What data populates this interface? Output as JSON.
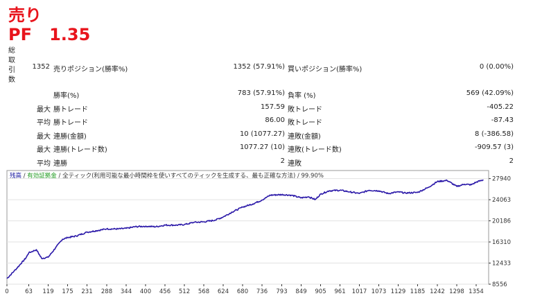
{
  "header": {
    "title": "売り",
    "pf_label": "PF",
    "pf_value": "1.35"
  },
  "vertical_label": [
    "総",
    "取",
    "引",
    "数"
  ],
  "stats": {
    "total_trades": "1352",
    "sell_positions_label": "売りポジション(勝率%)",
    "sell_positions_value": "1352 (57.91%)",
    "buy_positions_label": "買いポジション(勝率%)",
    "buy_positions_value": "0 (0.00%)",
    "win_rate_label": "勝率(%)",
    "win_rate_value": "783 (57.91%)",
    "loss_rate_label": "負率 (%)",
    "loss_rate_value": "569 (42.09%)",
    "max_prefix": "最大",
    "avg_prefix": "平均",
    "max_win_label": "勝トレード",
    "max_win_value": "157.59",
    "max_loss_label": "敗トレード",
    "max_loss_value": "-405.22",
    "avg_win_label": "勝トレード",
    "avg_win_value": "86.00",
    "avg_loss_label": "敗トレード",
    "avg_loss_value": "-87.43",
    "max_consec_win_amount_label": "連勝(金額)",
    "max_consec_win_amount_value": "10 (1077.27)",
    "max_consec_loss_amount_label": "連敗(金額)",
    "max_consec_loss_amount_value": "8 (-386.58)",
    "max_consec_win_trades_label": "連勝(トレード数)",
    "max_consec_win_trades_value": "1077.27 (10)",
    "max_consec_loss_trades_label": "連敗(トレード数)",
    "max_consec_loss_trades_value": "-909.57 (3)",
    "avg_consec_win_label": "連勝",
    "avg_consec_win_value": "2",
    "avg_consec_loss_label": "連敗",
    "avg_consec_loss_value": "2"
  },
  "chart_data": {
    "type": "line",
    "legend": {
      "balance": "残高",
      "separator": " / ",
      "equity": "有効証拠金",
      "note": " / 全ティック(利用可能な最小時間枠を使いすべてのティックを生成する、最も正確な方法) / 99.90%"
    },
    "colors": {
      "balance": "#1a1aa0",
      "equity": "#1f9a1f",
      "line": "#2a18a8",
      "grid": "#e2e2e2",
      "axis": "#333333"
    },
    "x_ticks": [
      0,
      63,
      119,
      175,
      231,
      288,
      344,
      400,
      456,
      512,
      568,
      624,
      680,
      736,
      793,
      849,
      905,
      961,
      1017,
      1073,
      1129,
      1185,
      1242,
      1298,
      1354
    ],
    "y_ticks": [
      8556,
      12433,
      16310,
      20186,
      24063,
      27940
    ],
    "xlim": [
      0,
      1390
    ],
    "ylim": [
      8556,
      29420
    ],
    "series": [
      {
        "name": "残高",
        "points": [
          [
            0,
            9600
          ],
          [
            20,
            10900
          ],
          [
            40,
            12300
          ],
          [
            55,
            13400
          ],
          [
            63,
            14300
          ],
          [
            85,
            14900
          ],
          [
            100,
            13300
          ],
          [
            119,
            13500
          ],
          [
            140,
            15200
          ],
          [
            160,
            16800
          ],
          [
            175,
            17100
          ],
          [
            200,
            17400
          ],
          [
            231,
            18100
          ],
          [
            260,
            18400
          ],
          [
            288,
            18700
          ],
          [
            320,
            18700
          ],
          [
            344,
            18800
          ],
          [
            370,
            19100
          ],
          [
            400,
            19200
          ],
          [
            430,
            19100
          ],
          [
            456,
            19400
          ],
          [
            490,
            19400
          ],
          [
            512,
            19500
          ],
          [
            540,
            19900
          ],
          [
            568,
            20000
          ],
          [
            600,
            20300
          ],
          [
            624,
            20900
          ],
          [
            650,
            21800
          ],
          [
            680,
            22700
          ],
          [
            710,
            23300
          ],
          [
            736,
            24000
          ],
          [
            760,
            24900
          ],
          [
            793,
            25000
          ],
          [
            820,
            24900
          ],
          [
            849,
            24400
          ],
          [
            870,
            24600
          ],
          [
            890,
            24100
          ],
          [
            905,
            25100
          ],
          [
            930,
            25700
          ],
          [
            961,
            25800
          ],
          [
            990,
            25500
          ],
          [
            1017,
            25200
          ],
          [
            1045,
            25800
          ],
          [
            1073,
            25700
          ],
          [
            1100,
            25200
          ],
          [
            1129,
            25500
          ],
          [
            1150,
            25300
          ],
          [
            1185,
            25400
          ],
          [
            1215,
            26300
          ],
          [
            1242,
            27400
          ],
          [
            1270,
            27600
          ],
          [
            1298,
            26500
          ],
          [
            1320,
            26900
          ],
          [
            1340,
            26800
          ],
          [
            1354,
            27300
          ],
          [
            1375,
            27700
          ]
        ]
      }
    ]
  }
}
